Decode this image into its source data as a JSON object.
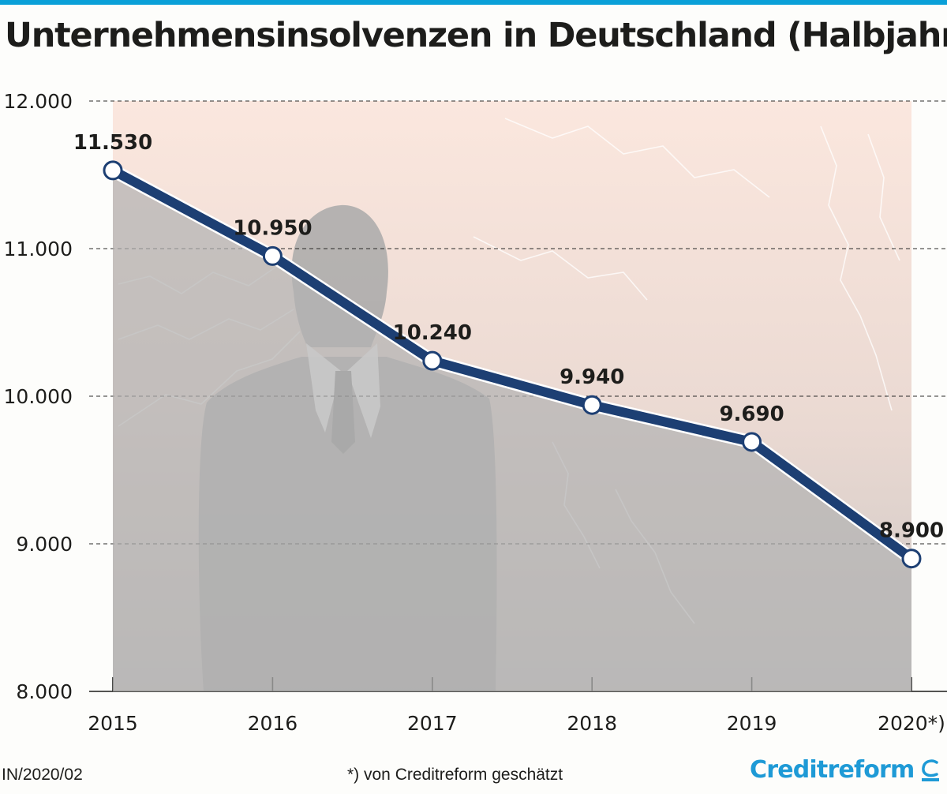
{
  "title": "Unternehmensinsolvenzen in Deutschland (Halbjahr)",
  "footer": {
    "code": "IN/2020/02",
    "note": "*) von Creditreform geschätzt",
    "brand": "Creditreform"
  },
  "colors": {
    "line": "#1d3f73",
    "accent": "#0aa0d8",
    "brand": "#1e9ad6",
    "background_top": "#f7ded3",
    "background_bottom": "#b5b5b5"
  },
  "icons": {
    "brand_mark": "creditreform-c-logo",
    "background": "businessman-silhouette-with-lightning"
  },
  "chart_data": {
    "type": "line",
    "title": "Unternehmensinsolvenzen in Deutschland (Halbjahr)",
    "categories": [
      "2015",
      "2016",
      "2017",
      "2018",
      "2019",
      "2020*)"
    ],
    "series": [
      {
        "values": [
          11530,
          10950,
          10240,
          9940,
          9690,
          8900
        ],
        "data_labels": [
          "11.530",
          "10.950",
          "10.240",
          "9.940",
          "9.690",
          "8.900"
        ]
      }
    ],
    "ylim": [
      8000,
      12000
    ],
    "yticks": [
      8000,
      9000,
      10000,
      11000,
      12000
    ],
    "ytick_labels": [
      "8.000",
      "9.000",
      "10.000",
      "11.000",
      "12.000"
    ],
    "grid": "horizontal dashed",
    "legend": "none"
  }
}
